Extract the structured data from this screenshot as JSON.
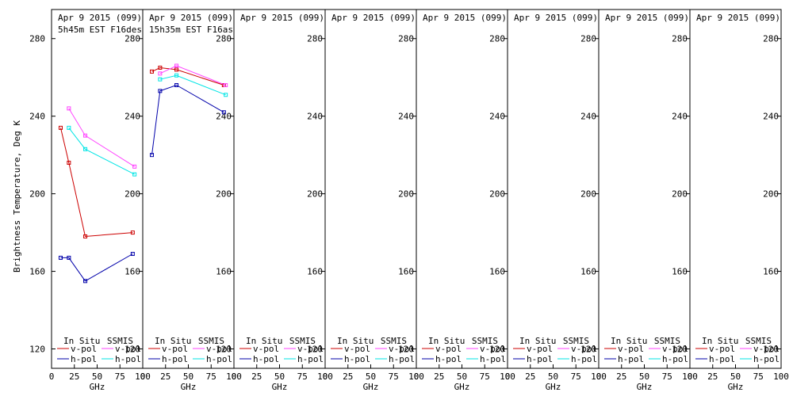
{
  "figure": {
    "ylabel": "Brightness Temperature, Deg K",
    "xlabel": "GHz",
    "yticks": [
      120,
      160,
      200,
      240,
      280
    ],
    "xticks": [
      "0",
      "25",
      "50",
      "75",
      "100"
    ],
    "ylim": [
      110,
      295
    ],
    "xlim": [
      0,
      100
    ],
    "legend": {
      "in_situ_label": "In Situ",
      "ssmis_label": "SSMIS",
      "vpol_label": "v-pol",
      "hpol_label": "h-pol"
    },
    "colors": {
      "insitu_v": "#cc0000",
      "insitu_h": "#0000aa",
      "ssmis_v": "#ff44ff",
      "ssmis_h": "#00e5e5"
    }
  },
  "chart_data": [
    {
      "type": "line",
      "title": "Apr 9 2015 (099)",
      "subtitle": "5h45m EST F16des",
      "series": [
        {
          "name": "In Situ v-pol",
          "x": [
            10,
            19,
            37,
            89
          ],
          "y": [
            234,
            216,
            178,
            180
          ]
        },
        {
          "name": "In Situ h-pol",
          "x": [
            10,
            19,
            37,
            89
          ],
          "y": [
            167,
            167,
            155,
            169
          ]
        },
        {
          "name": "SSMIS v-pol",
          "x": [
            19,
            37,
            91
          ],
          "y": [
            244,
            230,
            214
          ]
        },
        {
          "name": "SSMIS h-pol",
          "x": [
            19,
            37,
            91
          ],
          "y": [
            234,
            223,
            210
          ]
        }
      ]
    },
    {
      "type": "line",
      "title": "Apr 9 2015 (099)",
      "subtitle": "15h35m EST F16asc",
      "series": [
        {
          "name": "In Situ v-pol",
          "x": [
            10,
            19,
            37,
            89
          ],
          "y": [
            263,
            265,
            264,
            256
          ]
        },
        {
          "name": "In Situ h-pol",
          "x": [
            10,
            19,
            37,
            89
          ],
          "y": [
            220,
            253,
            256,
            242
          ]
        },
        {
          "name": "SSMIS v-pol",
          "x": [
            19,
            37,
            91
          ],
          "y": [
            262,
            266,
            256
          ]
        },
        {
          "name": "SSMIS h-pol",
          "x": [
            19,
            37,
            91
          ],
          "y": [
            259,
            261,
            251
          ]
        }
      ]
    },
    {
      "type": "line",
      "title": "Apr 9 2015 (099)",
      "subtitle": "",
      "series": []
    },
    {
      "type": "line",
      "title": "Apr 9 2015 (099)",
      "subtitle": "",
      "series": []
    },
    {
      "type": "line",
      "title": "Apr 9 2015 (099)",
      "subtitle": "",
      "series": []
    },
    {
      "type": "line",
      "title": "Apr 9 2015 (099)",
      "subtitle": "",
      "series": []
    },
    {
      "type": "line",
      "title": "Apr 9 2015 (099)",
      "subtitle": "",
      "series": []
    },
    {
      "type": "line",
      "title": "Apr 9 2015 (099)",
      "subtitle": "",
      "series": []
    }
  ]
}
